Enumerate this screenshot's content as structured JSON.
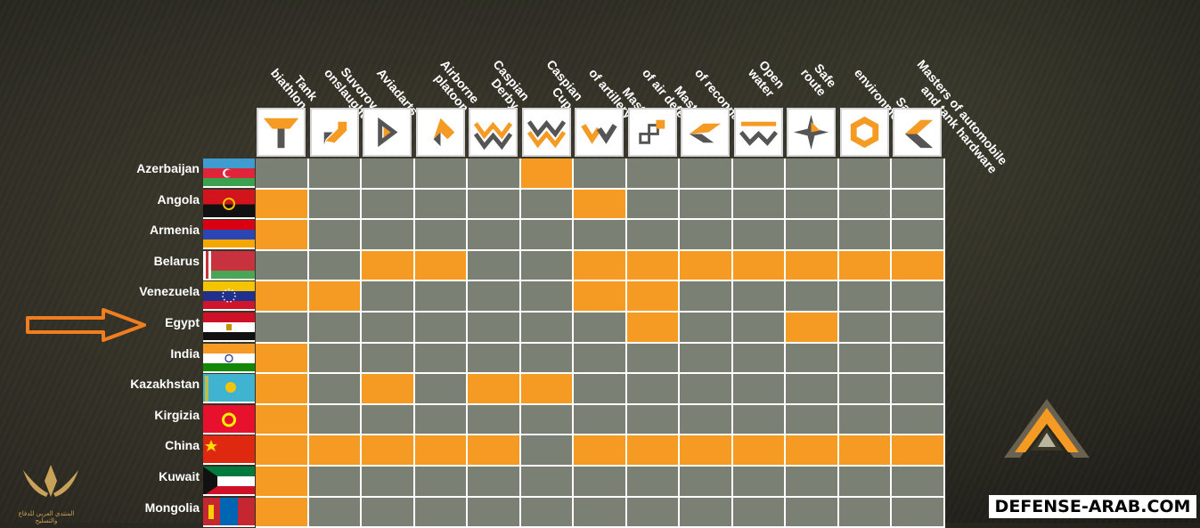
{
  "columns": [
    {
      "label": "Tank\nbiathlon",
      "icon": "tank-biathlon-icon"
    },
    {
      "label": "Suvorov\nonslaught",
      "icon": "suvorov-onslaught-icon"
    },
    {
      "label": "Aviadarts",
      "icon": "aviadarts-icon"
    },
    {
      "label": "Airborne\nplatoon",
      "icon": "airborne-platoon-icon"
    },
    {
      "label": "Caspian\nDerby",
      "icon": "caspian-derby-icon"
    },
    {
      "label": "Caspian\nCup",
      "icon": "caspian-cup-icon"
    },
    {
      "label": "Masters\nof artillery fire",
      "icon": "artillery-fire-icon"
    },
    {
      "label": "Masters\nof air defence",
      "icon": "air-defence-icon"
    },
    {
      "label": "Masters\nof reconnaissance",
      "icon": "reconnaissance-icon"
    },
    {
      "label": "Open\nwater",
      "icon": "open-water-icon"
    },
    {
      "label": "Safe\nroute",
      "icon": "safe-route-icon"
    },
    {
      "label": "Safe\nenvironment",
      "icon": "safe-environment-icon"
    },
    {
      "label": "Masters of automobile\nand tank hardware",
      "icon": "automobile-tank-hardware-icon"
    }
  ],
  "rows": [
    {
      "country": "Azerbaijan",
      "flag": "azerbaijan-flag",
      "cells": [
        0,
        0,
        0,
        0,
        0,
        1,
        0,
        0,
        0,
        0,
        0,
        0,
        0
      ]
    },
    {
      "country": "Angola",
      "flag": "angola-flag",
      "cells": [
        1,
        0,
        0,
        0,
        0,
        0,
        1,
        0,
        0,
        0,
        0,
        0,
        0
      ]
    },
    {
      "country": "Armenia",
      "flag": "armenia-flag",
      "cells": [
        1,
        0,
        0,
        0,
        0,
        0,
        0,
        0,
        0,
        0,
        0,
        0,
        0
      ]
    },
    {
      "country": "Belarus",
      "flag": "belarus-flag",
      "cells": [
        0,
        0,
        1,
        1,
        0,
        0,
        1,
        1,
        1,
        1,
        1,
        1,
        1
      ]
    },
    {
      "country": "Venezuela",
      "flag": "venezuela-flag",
      "cells": [
        1,
        1,
        0,
        0,
        0,
        0,
        1,
        1,
        0,
        0,
        0,
        0,
        0
      ]
    },
    {
      "country": "Egypt",
      "flag": "egypt-flag",
      "cells": [
        0,
        0,
        0,
        0,
        0,
        0,
        0,
        1,
        0,
        0,
        1,
        0,
        0
      ]
    },
    {
      "country": "India",
      "flag": "india-flag",
      "cells": [
        1,
        0,
        0,
        0,
        0,
        0,
        0,
        0,
        0,
        0,
        0,
        0,
        0
      ]
    },
    {
      "country": "Kazakhstan",
      "flag": "kazakhstan-flag",
      "cells": [
        1,
        0,
        1,
        0,
        1,
        1,
        0,
        0,
        0,
        0,
        0,
        0,
        0
      ]
    },
    {
      "country": "Kirgizia",
      "flag": "kyrgyzstan-flag",
      "cells": [
        1,
        0,
        0,
        0,
        0,
        0,
        0,
        0,
        0,
        0,
        0,
        0,
        0
      ]
    },
    {
      "country": "China",
      "flag": "china-flag",
      "cells": [
        1,
        1,
        1,
        1,
        1,
        0,
        1,
        1,
        1,
        1,
        1,
        1,
        1
      ]
    },
    {
      "country": "Kuwait",
      "flag": "kuwait-flag",
      "cells": [
        1,
        0,
        0,
        0,
        0,
        0,
        0,
        0,
        0,
        0,
        0,
        0,
        0
      ]
    },
    {
      "country": "Mongolia",
      "flag": "mongolia-flag",
      "cells": [
        1,
        0,
        0,
        0,
        0,
        0,
        0,
        0,
        0,
        0,
        0,
        0,
        0
      ]
    }
  ],
  "colors": {
    "on": "#f59a22",
    "off": "#7a8073",
    "arrow": "#f07d1e"
  },
  "watermark": "DEFENSE-ARAB.COM",
  "forum_logo_text": "المنتدى العربي للدفاع والتسليح"
}
